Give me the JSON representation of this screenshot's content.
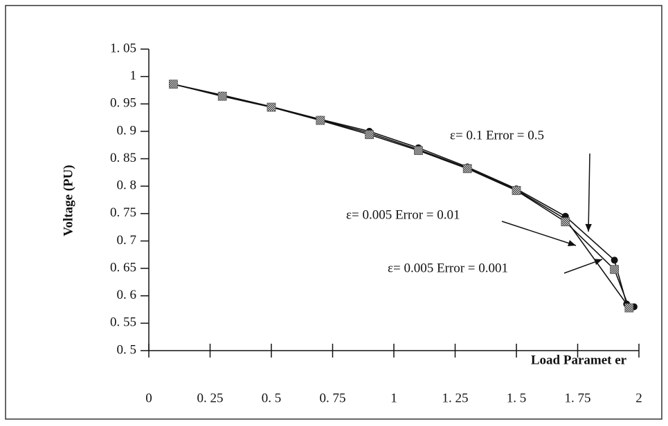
{
  "chart_data": {
    "type": "line",
    "ylabel": "Voltage (PU)",
    "xlabel": "Load Paramet er",
    "xlim": [
      0,
      2
    ],
    "xticks": [
      0,
      {
        "value": 0.25,
        "label": "0. 25"
      },
      {
        "value": 0.5,
        "label": "0. 5"
      },
      {
        "value": 0.75,
        "label": "0. 75"
      },
      1,
      {
        "value": 1.25,
        "label": "1. 25"
      },
      {
        "value": 1.5,
        "label": "1. 5"
      },
      {
        "value": 1.75,
        "label": "1. 75"
      },
      2
    ],
    "ylim": [
      0.5,
      1.05
    ],
    "yticks": [
      {
        "value": 0.5,
        "label": "0. 5"
      },
      {
        "value": 0.55,
        "label": "0. 55"
      },
      {
        "value": 0.6,
        "label": "0. 6"
      },
      {
        "value": 0.65,
        "label": "0. 65"
      },
      {
        "value": 0.7,
        "label": "0. 7"
      },
      {
        "value": 0.75,
        "label": "0. 75"
      },
      {
        "value": 0.8,
        "label": "0. 8"
      },
      {
        "value": 0.85,
        "label": "0. 85"
      },
      {
        "value": 0.9,
        "label": "0. 9"
      },
      {
        "value": 0.95,
        "label": "0. 95"
      },
      1,
      {
        "value": 1.05,
        "label": "1. 05"
      }
    ],
    "series": [
      {
        "name": "ε= 0.1 Error = 0.5",
        "color": "#111111",
        "x": [
          0.1,
          0.3,
          0.5,
          0.7,
          0.9,
          1.1,
          1.3,
          1.5,
          1.7,
          1.9,
          1.95,
          1.98
        ],
        "values": [
          0.986,
          0.966,
          0.945,
          0.922,
          0.9,
          0.87,
          0.835,
          0.795,
          0.745,
          0.665,
          0.585,
          0.58
        ]
      },
      {
        "name": "ε= 0.005 Error = 0.01",
        "color": "#111111",
        "x": [
          0.1,
          0.3,
          0.5,
          0.7,
          0.9,
          1.1,
          1.3,
          1.5,
          1.7,
          1.95
        ],
        "values": [
          0.986,
          0.965,
          0.945,
          0.921,
          0.897,
          0.867,
          0.833,
          0.793,
          0.74,
          0.585
        ]
      },
      {
        "name": "ε= 0.005 Error = 0.001",
        "color": "#111111",
        "x": [
          0.1,
          0.3,
          0.5,
          0.7,
          0.9,
          1.1,
          1.3,
          1.5,
          1.7,
          1.9,
          1.96
        ],
        "values": [
          0.986,
          0.964,
          0.944,
          0.92,
          0.894,
          0.865,
          0.832,
          0.792,
          0.735,
          0.648,
          0.578
        ]
      }
    ]
  }
}
